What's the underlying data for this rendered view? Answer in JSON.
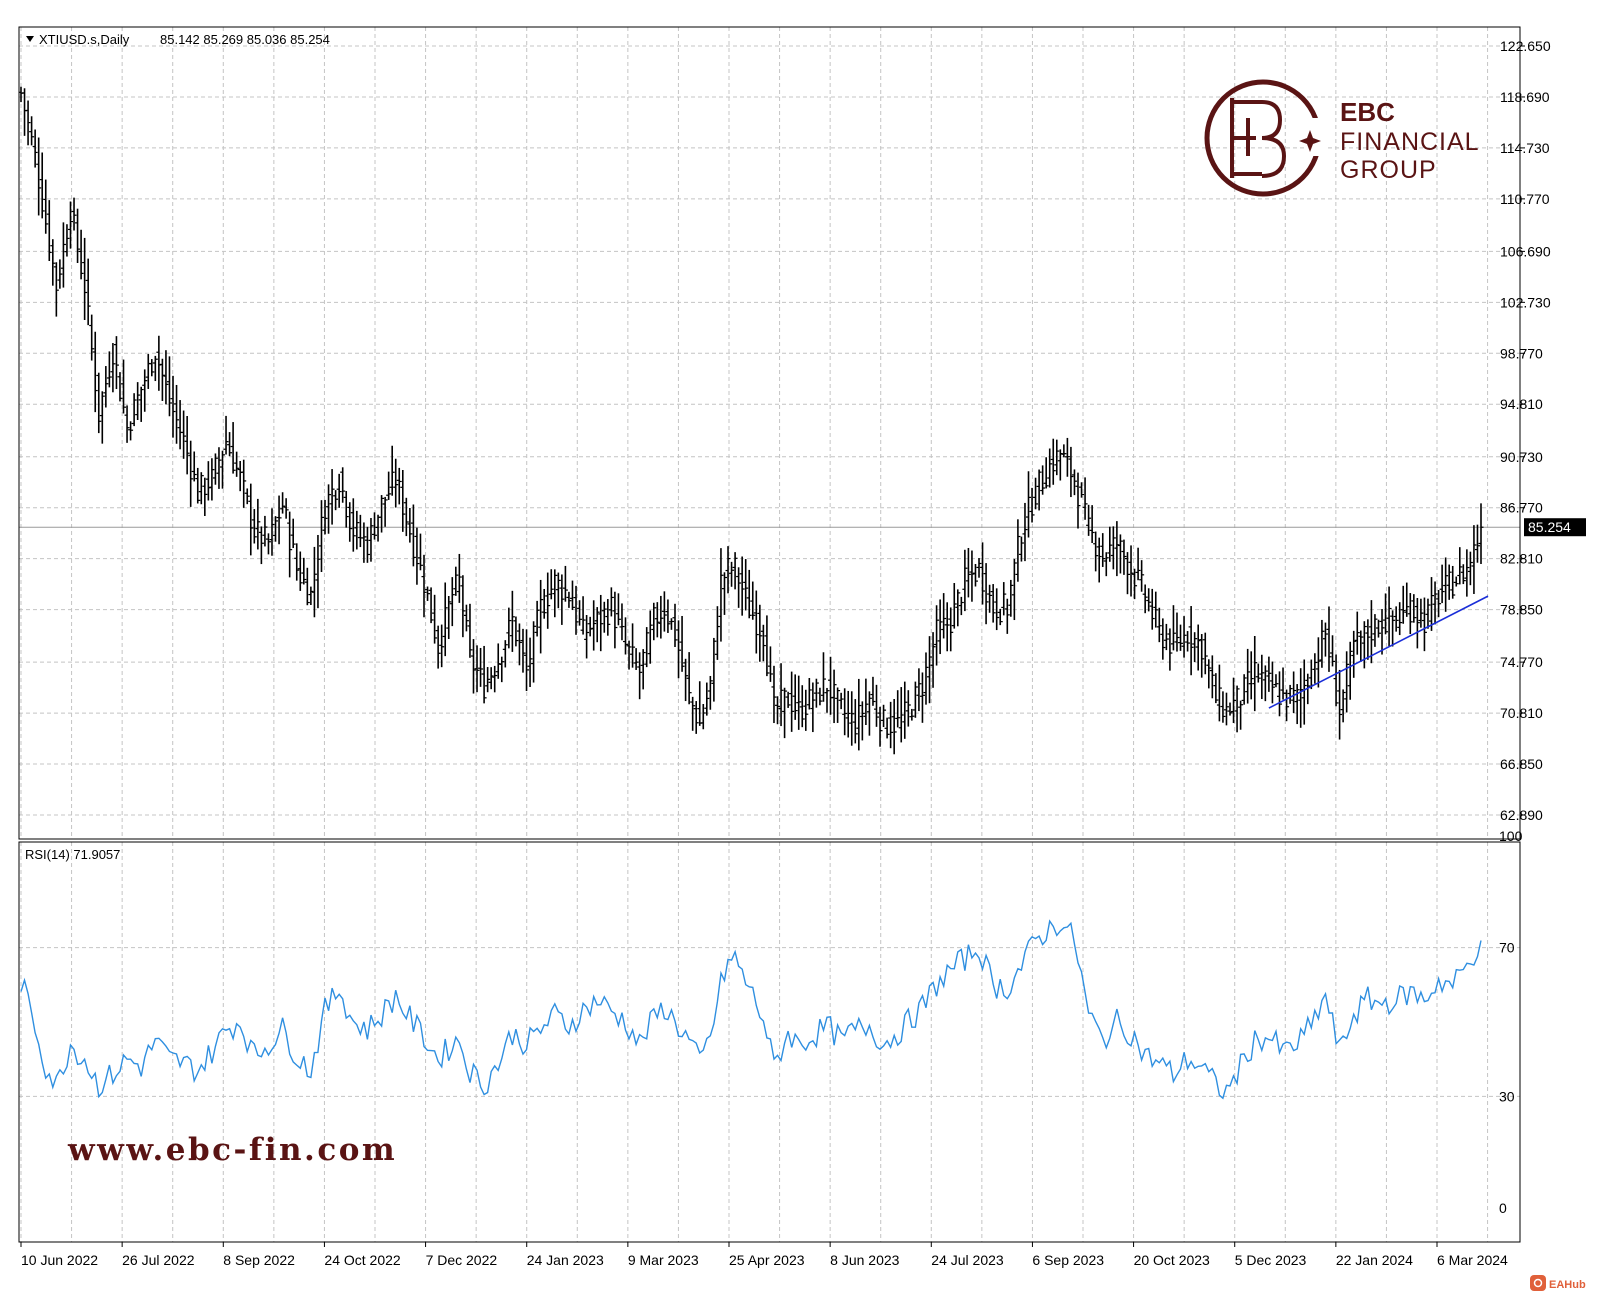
{
  "header": {
    "symbol_label": "XTIUSD.s,Daily",
    "ohlc_label": "85.142 85.269 85.036 85.254"
  },
  "price_badge": "85.254",
  "rsi_panel": {
    "label": "RSI(14) 71.9057"
  },
  "watermark": {
    "url": "www.ebc-fin.com",
    "logo_brand": "EBC",
    "logo_line1": "FINANCIAL",
    "logo_line2": "GROUP"
  },
  "footer_logo": "EAHub",
  "colors": {
    "bars": "#000000",
    "grid": "#c4c4c4",
    "trendline": "#1a2ed8",
    "rsi_line": "#2f8fe0",
    "brand": "#5a1414",
    "last_price_line": "#9a9a9a"
  },
  "chart_data": [
    {
      "type": "ohlc",
      "symbol": "XTIUSD.s",
      "timeframe": "Daily",
      "price_axis": {
        "ticks": [
          "122.650",
          "118.690",
          "114.730",
          "110.770",
          "106.690",
          "102.730",
          "98.770",
          "94.810",
          "90.730",
          "86.770",
          "82.810",
          "78.850",
          "74.770",
          "70.810",
          "66.850",
          "62.890"
        ],
        "range": [
          62.89,
          122.65
        ]
      },
      "time_axis": {
        "ticks": [
          "10 Jun 2022",
          "26 Jul 2022",
          "8 Sep 2022",
          "24 Oct 2022",
          "7 Dec 2022",
          "24 Jan 2023",
          "9 Mar 2023",
          "25 Apr 2023",
          "8 Jun 2023",
          "24 Jul 2023",
          "6 Sep 2023",
          "20 Oct 2023",
          "5 Dec 2023",
          "22 Jan 2024",
          "6 Mar 2024"
        ]
      },
      "last_price": 85.254,
      "close_path": [
        [
          0,
          119
        ],
        [
          4,
          114
        ],
        [
          7,
          109
        ],
        [
          10,
          104
        ],
        [
          14,
          110
        ],
        [
          18,
          104
        ],
        [
          22,
          94
        ],
        [
          26,
          99
        ],
        [
          30,
          93
        ],
        [
          34,
          96
        ],
        [
          38,
          99
        ],
        [
          42,
          95
        ],
        [
          46,
          92
        ],
        [
          50,
          88
        ],
        [
          54,
          89
        ],
        [
          58,
          92
        ],
        [
          62,
          89
        ],
        [
          66,
          85
        ],
        [
          70,
          84
        ],
        [
          74,
          87
        ],
        [
          78,
          82
        ],
        [
          82,
          80
        ],
        [
          86,
          87
        ],
        [
          90,
          89
        ],
        [
          94,
          85
        ],
        [
          98,
          84
        ],
        [
          102,
          87
        ],
        [
          106,
          89
        ],
        [
          110,
          85
        ],
        [
          114,
          81
        ],
        [
          118,
          76
        ],
        [
          122,
          80
        ],
        [
          124,
          81
        ],
        [
          127,
          75
        ],
        [
          131,
          73
        ],
        [
          135,
          75
        ],
        [
          139,
          78
        ],
        [
          143,
          74
        ],
        [
          147,
          79
        ],
        [
          151,
          81
        ],
        [
          155,
          80
        ],
        [
          159,
          77
        ],
        [
          163,
          78
        ],
        [
          167,
          79
        ],
        [
          171,
          76
        ],
        [
          175,
          74
        ],
        [
          179,
          78
        ],
        [
          182,
          79
        ],
        [
          185,
          77
        ],
        [
          189,
          72
        ],
        [
          192,
          70
        ],
        [
          195,
          73
        ],
        [
          198,
          81
        ],
        [
          200,
          82
        ],
        [
          202,
          82
        ],
        [
          206,
          79
        ],
        [
          210,
          77
        ],
        [
          213,
          71
        ],
        [
          217,
          72
        ],
        [
          220,
          71
        ],
        [
          224,
          72
        ],
        [
          228,
          73
        ],
        [
          232,
          71
        ],
        [
          236,
          70
        ],
        [
          240,
          72
        ],
        [
          244,
          70
        ],
        [
          248,
          70
        ],
        [
          251,
          71
        ],
        [
          255,
          73
        ],
        [
          259,
          77
        ],
        [
          263,
          78
        ],
        [
          267,
          81
        ],
        [
          271,
          82
        ],
        [
          275,
          79
        ],
        [
          279,
          79
        ],
        [
          283,
          85
        ],
        [
          287,
          88
        ],
        [
          291,
          90
        ],
        [
          294,
          91
        ],
        [
          298,
          89
        ],
        [
          302,
          85
        ],
        [
          306,
          83
        ],
        [
          310,
          84
        ],
        [
          314,
          82
        ],
        [
          318,
          80
        ],
        [
          322,
          77
        ],
        [
          326,
          76
        ],
        [
          330,
          77
        ],
        [
          334,
          76
        ],
        [
          338,
          72
        ],
        [
          341,
          71
        ],
        [
          345,
          72
        ],
        [
          349,
          74
        ],
        [
          353,
          73
        ],
        [
          357,
          72
        ],
        [
          361,
          72
        ],
        [
          365,
          74
        ],
        [
          369,
          77
        ],
        [
          373,
          71
        ],
        [
          377,
          76
        ],
        [
          381,
          77
        ],
        [
          385,
          78
        ],
        [
          389,
          78
        ],
        [
          393,
          79
        ],
        [
          397,
          78
        ],
        [
          401,
          80
        ],
        [
          405,
          81
        ],
        [
          409,
          82
        ],
        [
          413,
          85
        ]
      ],
      "trendline": {
        "start": {
          "date": "early Feb 2024",
          "price": 71.2
        },
        "end": {
          "date": "end Mar 2024",
          "price": 79.9
        }
      }
    },
    {
      "type": "line",
      "name": "RSI(14)",
      "last_value": 71.9057,
      "y_axis": {
        "ticks": [
          100,
          70,
          30,
          0
        ],
        "range": [
          0,
          100
        ]
      },
      "levels": [
        70,
        30
      ],
      "path": [
        [
          0,
          61
        ],
        [
          4,
          49
        ],
        [
          7,
          38
        ],
        [
          10,
          33
        ],
        [
          14,
          44
        ],
        [
          18,
          40
        ],
        [
          22,
          33
        ],
        [
          26,
          36
        ],
        [
          30,
          40
        ],
        [
          34,
          38
        ],
        [
          38,
          45
        ],
        [
          42,
          40
        ],
        [
          46,
          39
        ],
        [
          50,
          37
        ],
        [
          54,
          42
        ],
        [
          58,
          48
        ],
        [
          62,
          50
        ],
        [
          66,
          41
        ],
        [
          70,
          44
        ],
        [
          74,
          48
        ],
        [
          78,
          41
        ],
        [
          82,
          37
        ],
        [
          86,
          53
        ],
        [
          90,
          59
        ],
        [
          94,
          50
        ],
        [
          98,
          48
        ],
        [
          102,
          52
        ],
        [
          106,
          57
        ],
        [
          110,
          51
        ],
        [
          114,
          46
        ],
        [
          118,
          40
        ],
        [
          122,
          44
        ],
        [
          124,
          45
        ],
        [
          127,
          37
        ],
        [
          131,
          33
        ],
        [
          135,
          39
        ],
        [
          139,
          47
        ],
        [
          143,
          44
        ],
        [
          147,
          48
        ],
        [
          151,
          52
        ],
        [
          155,
          49
        ],
        [
          159,
          53
        ],
        [
          163,
          56
        ],
        [
          167,
          53
        ],
        [
          171,
          50
        ],
        [
          175,
          44
        ],
        [
          179,
          51
        ],
        [
          182,
          54
        ],
        [
          185,
          50
        ],
        [
          189,
          45
        ],
        [
          192,
          39
        ],
        [
          195,
          46
        ],
        [
          198,
          60
        ],
        [
          200,
          66
        ],
        [
          202,
          67
        ],
        [
          206,
          59
        ],
        [
          210,
          51
        ],
        [
          213,
          38
        ],
        [
          217,
          47
        ],
        [
          220,
          44
        ],
        [
          224,
          46
        ],
        [
          228,
          49
        ],
        [
          232,
          45
        ],
        [
          236,
          48
        ],
        [
          240,
          49
        ],
        [
          244,
          44
        ],
        [
          248,
          47
        ],
        [
          251,
          50
        ],
        [
          255,
          54
        ],
        [
          259,
          60
        ],
        [
          263,
          64
        ],
        [
          267,
          67
        ],
        [
          271,
          70
        ],
        [
          275,
          60
        ],
        [
          279,
          59
        ],
        [
          283,
          65
        ],
        [
          287,
          72
        ],
        [
          291,
          75
        ],
        [
          294,
          77
        ],
        [
          298,
          72
        ],
        [
          302,
          52
        ],
        [
          306,
          45
        ],
        [
          310,
          50
        ],
        [
          314,
          47
        ],
        [
          318,
          41
        ],
        [
          322,
          39
        ],
        [
          326,
          36
        ],
        [
          330,
          40
        ],
        [
          334,
          38
        ],
        [
          338,
          33
        ],
        [
          341,
          31
        ],
        [
          345,
          38
        ],
        [
          349,
          45
        ],
        [
          353,
          46
        ],
        [
          357,
          42
        ],
        [
          361,
          44
        ],
        [
          365,
          49
        ],
        [
          369,
          57
        ],
        [
          373,
          42
        ],
        [
          377,
          52
        ],
        [
          381,
          56
        ],
        [
          385,
          55
        ],
        [
          389,
          56
        ],
        [
          393,
          58
        ],
        [
          397,
          56
        ],
        [
          401,
          61
        ],
        [
          405,
          60
        ],
        [
          409,
          65
        ],
        [
          413,
          72
        ]
      ]
    }
  ]
}
